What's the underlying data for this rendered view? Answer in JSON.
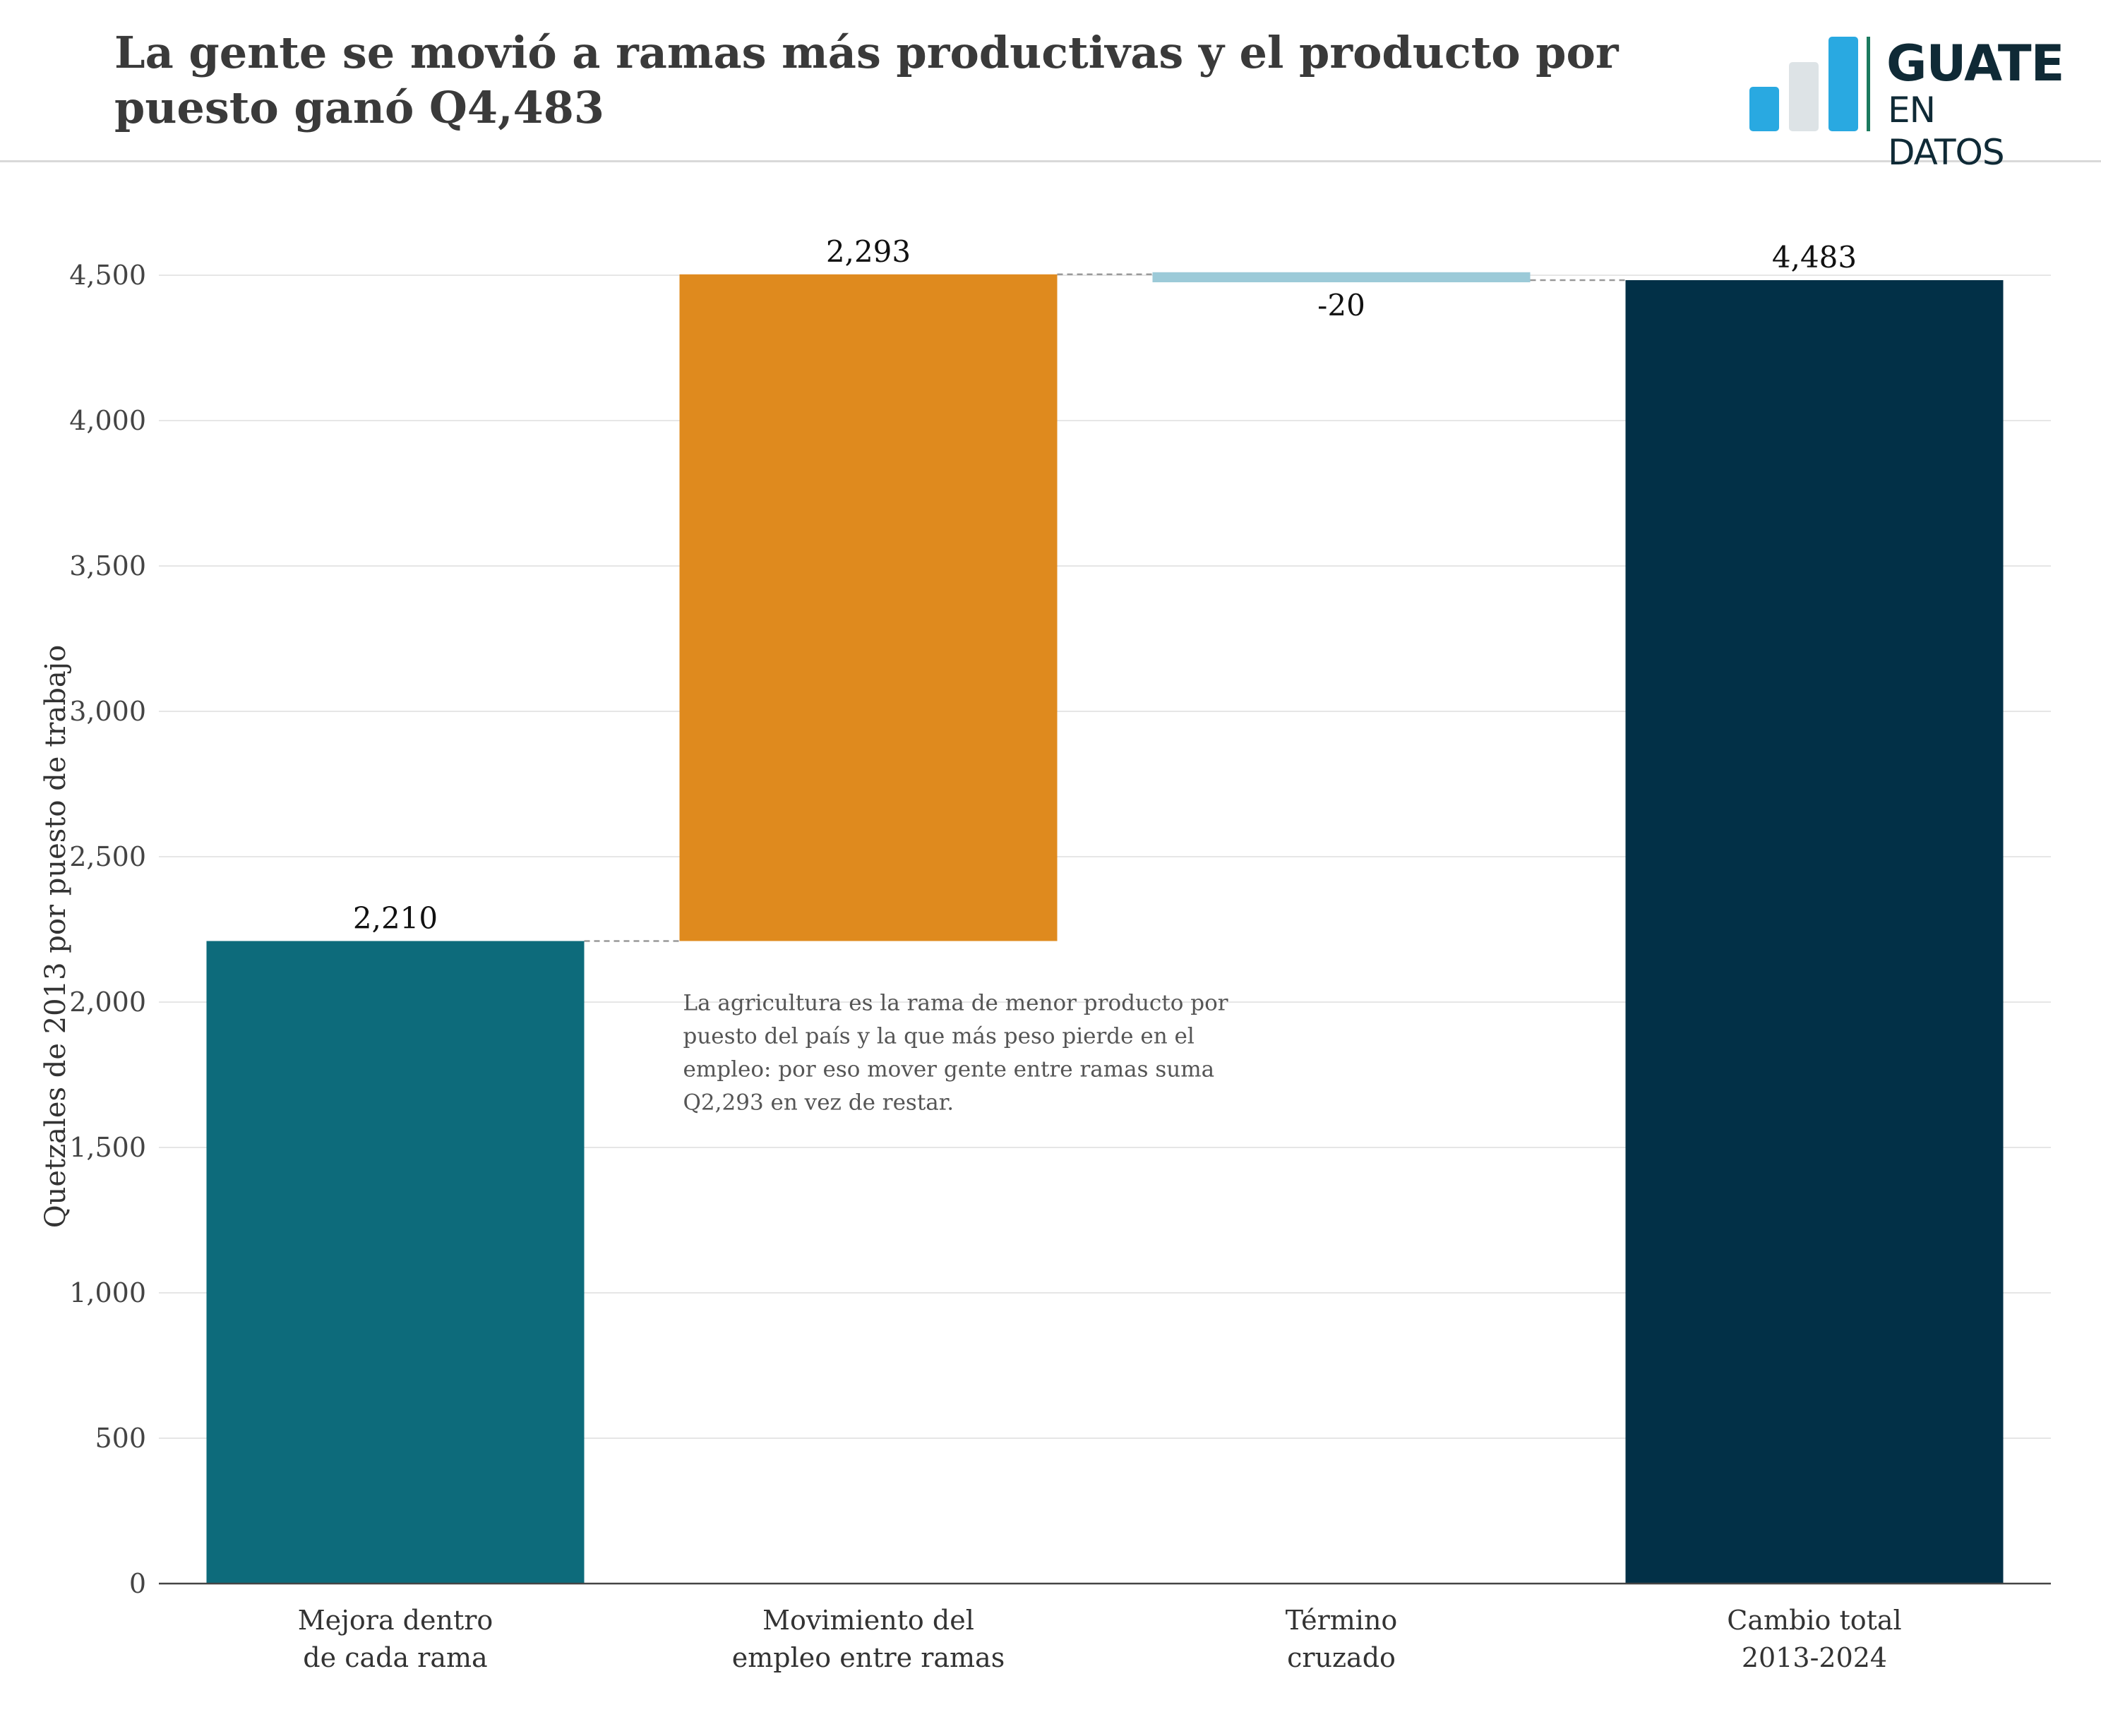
{
  "header": {
    "title": "La gente se movió a ramas más productivas y el producto por puesto ganó Q4,483",
    "logo_line1": "GUATE",
    "logo_line2": "EN DATOS",
    "logo_colors": [
      "#29a9e1",
      "#dde3e6",
      "#29a9e1",
      "#1b7a5e"
    ]
  },
  "chart_data": {
    "type": "bar",
    "subtype": "waterfall",
    "title": "La gente se movió a ramas más productivas y el producto por puesto ganó Q4,483",
    "ylabel": "Quetzales de 2013 por puesto de trabajo",
    "xlabel": "",
    "ylim": [
      0,
      4650
    ],
    "yticks": [
      0,
      500,
      1000,
      1500,
      2000,
      2500,
      3000,
      3500,
      4000,
      4500
    ],
    "ytick_labels": [
      "0",
      "500",
      "1,000",
      "1,500",
      "2,000",
      "2,500",
      "3,000",
      "3,500",
      "4,000",
      "4,500"
    ],
    "grid": true,
    "categories": [
      "Mejora dentro de cada rama",
      "Movimiento del empleo entre ramas",
      "Término cruzado",
      "Cambio total 2013-2024"
    ],
    "category_lines": [
      [
        "Mejora dentro",
        "de cada rama"
      ],
      [
        "Movimiento del",
        "empleo entre ramas"
      ],
      [
        "Término",
        "cruzado"
      ],
      [
        "Cambio total",
        "2013-2024"
      ]
    ],
    "values": [
      2210,
      2293,
      -20,
      4483
    ],
    "bar_start": [
      0,
      2210,
      4503,
      0
    ],
    "bar_end": [
      2210,
      4503,
      4483,
      4483
    ],
    "value_labels": [
      "2,210",
      "2,293",
      "-20",
      "4,483"
    ],
    "colors": [
      "#0d6b7b",
      "#df8a1e",
      "#9ccad8",
      "#023047"
    ],
    "annotation": {
      "lines": [
        "La agricultura es la rama de menor producto por",
        "puesto del país y la que más peso pierde en el",
        "empleo: por eso mover gente entre ramas suma",
        "Q2,293 en vez de restar."
      ]
    }
  }
}
